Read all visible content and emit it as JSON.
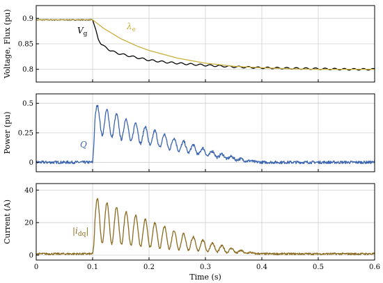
{
  "chart_data": [
    {
      "type": "line",
      "ylabel": "Voltage, Flux (pu)",
      "xlabel": "",
      "xlim": [
        0,
        0.6
      ],
      "ylim": [
        0.775,
        0.925
      ],
      "yticks": [
        "0.8",
        "0.85",
        "0.9"
      ],
      "ytick_values": [
        0.8,
        0.85,
        0.9
      ],
      "grid": true,
      "series": [
        {
          "name": "V",
          "name_sub": "g",
          "color": "#000000",
          "x": [
            0,
            0.1,
            0.103,
            0.106,
            0.11,
            0.115,
            0.12,
            0.13,
            0.14,
            0.15,
            0.17,
            0.2,
            0.23,
            0.26,
            0.3,
            0.35,
            0.4,
            0.45,
            0.5,
            0.55,
            0.6
          ],
          "y": [
            0.897,
            0.897,
            0.885,
            0.875,
            0.86,
            0.85,
            0.845,
            0.838,
            0.833,
            0.83,
            0.825,
            0.818,
            0.814,
            0.811,
            0.808,
            0.805,
            0.803,
            0.802,
            0.801,
            0.8,
            0.8
          ],
          "ripple": 0.002
        },
        {
          "name": "λ",
          "name_sub": "e",
          "color": "#c9b03b",
          "x": [
            0,
            0.1,
            0.12,
            0.15,
            0.18,
            0.2,
            0.25,
            0.3,
            0.35,
            0.4,
            0.45,
            0.5,
            0.55,
            0.6
          ],
          "y": [
            0.897,
            0.897,
            0.88,
            0.86,
            0.845,
            0.837,
            0.822,
            0.812,
            0.806,
            0.803,
            0.801,
            0.8,
            0.8,
            0.8
          ],
          "ripple": 0.0
        }
      ]
    },
    {
      "type": "line",
      "ylabel": "Power (pu)",
      "xlabel": "",
      "xlim": [
        0,
        0.6
      ],
      "ylim": [
        -0.08,
        0.58
      ],
      "yticks": [
        "0",
        "0.25",
        "0.5"
      ],
      "ytick_values": [
        0,
        0.25,
        0.5
      ],
      "grid": true,
      "series": [
        {
          "name": "Q",
          "color": "#3a64b0",
          "baseline": 0.0,
          "step_time": 0.1,
          "peak": 0.5,
          "trough": 0.25,
          "oscillation_period": 0.017,
          "decay_end": 0.4,
          "noise": 0.012
        }
      ]
    },
    {
      "type": "line",
      "ylabel": "Current (A)",
      "xlabel": "Time (s)",
      "xlim": [
        0,
        0.6
      ],
      "ylim": [
        -3,
        44
      ],
      "yticks": [
        "0",
        "20",
        "40"
      ],
      "ytick_values": [
        0,
        20,
        40
      ],
      "xticks": [
        "0",
        "0.1",
        "0.2",
        "0.3",
        "0.4",
        "0.5",
        "0.6"
      ],
      "xtick_values": [
        0,
        0.1,
        0.2,
        0.3,
        0.4,
        0.5,
        0.6
      ],
      "grid": true,
      "series": [
        {
          "name": "|i",
          "name_sub": "dq",
          "name_suffix": "|",
          "color": "#8a6a1e",
          "baseline": 0.8,
          "step_time": 0.1,
          "peak": 36,
          "trough": 8,
          "oscillation_period": 0.017,
          "decay_end": 0.4,
          "noise": 0.6
        }
      ]
    }
  ]
}
